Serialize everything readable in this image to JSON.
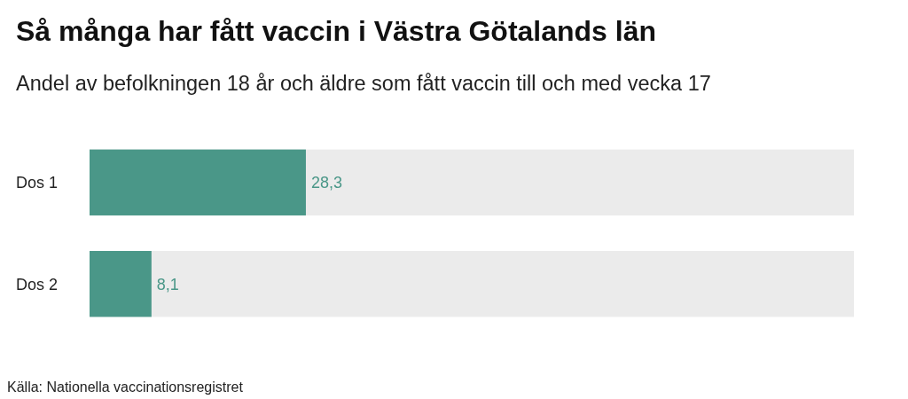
{
  "chart_data": {
    "type": "bar",
    "orientation": "horizontal",
    "title": "Så många har fått vaccin i Västra Götalands län",
    "subtitle": "Andel av befolkningen 18 år och äldre som fått vaccin till och med vecka 17",
    "categories": [
      "Dos 1",
      "Dos 2"
    ],
    "values": [
      28.3,
      8.1
    ],
    "value_labels": [
      "28,3",
      "8,1"
    ],
    "color": "#4a9788",
    "xlim": [
      0,
      100
    ],
    "tick_labels": "y",
    "annotations": [
      "Källa: Nationella vaccinationsregistret"
    ]
  }
}
